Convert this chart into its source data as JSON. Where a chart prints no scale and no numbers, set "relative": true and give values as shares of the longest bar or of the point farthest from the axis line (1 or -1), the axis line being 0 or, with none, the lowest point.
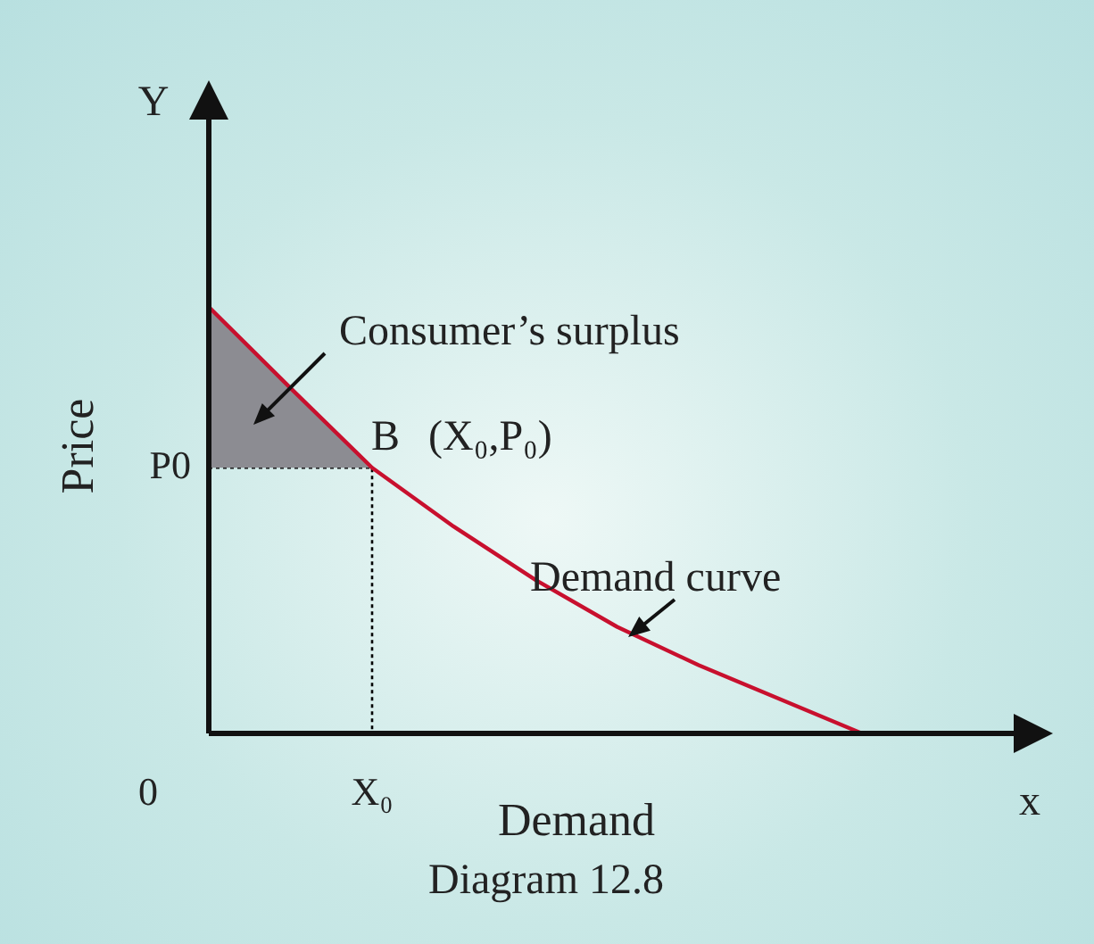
{
  "chart_data": {
    "type": "line",
    "relative": true,
    "xlabel": "Demand",
    "ylabel": "Price",
    "categories": [
      null,
      null,
      null,
      null,
      null,
      null,
      null,
      null,
      null
    ],
    "series": [
      {
        "type": "area",
        "color": "#8c8c92",
        "values": [
          1,
          0.81,
          0.623,
          null,
          null,
          null,
          null,
          null,
          null
        ]
      },
      {
        "color": "#c8102e",
        "values": [
          1,
          0.81,
          0.623,
          0.485,
          0.36,
          0.25,
          0.16,
          0.08,
          0
        ]
      }
    ],
    "ref_lines": [
      {
        "axis": "y",
        "value": 0.623,
        "label": "P0",
        "line_style": "dotted",
        "color": "#000000"
      }
    ],
    "annotations": [
      "Consumer’s surplus",
      "B",
      "(X₀,P₀)",
      "Demand curve",
      "0",
      "X₀",
      "Y",
      "x",
      "Diagram 12.8"
    ]
  }
}
